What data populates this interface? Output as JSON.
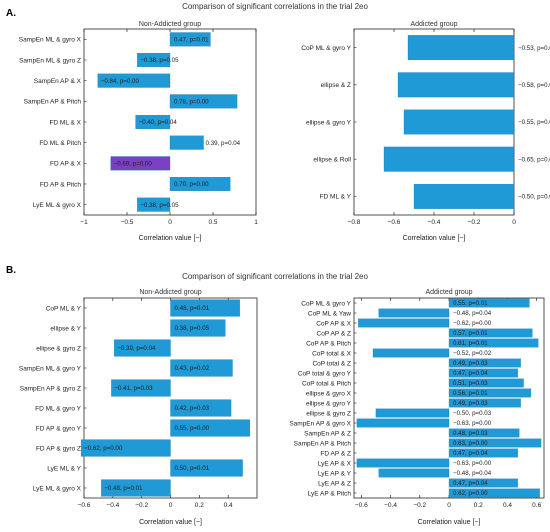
{
  "section_a": {
    "letter": "A.",
    "title": "Comparison of significant correlations in the trial 2eo"
  },
  "section_b": {
    "letter": "B.",
    "title": "Comparison of significant correlations in the trial 2eo"
  },
  "colors": {
    "bar_fill": "#1f9ad6",
    "bar_highlight": "#7b3fc4",
    "frame": "#262626"
  },
  "chart_data": [
    {
      "id": "a-non-addicted",
      "type": "bar",
      "orientation": "horizontal",
      "title": "Non-Addicted group",
      "xlabel": "Correlation value [−]",
      "xlim": [
        -1,
        1
      ],
      "xticks": [
        -1,
        -0.5,
        0,
        0.5,
        1
      ],
      "xtick_labels": [
        "−1",
        "−0.5",
        "0",
        "0.5",
        "1"
      ],
      "categories": [
        "SampEn ML & gyro X",
        "SampEn ML & gyro Z",
        "SampEn AP & X",
        "SampEn AP & Pitch",
        "FD ML & X",
        "FD ML & Pitch",
        "FD AP & X",
        "FD AP & Pitch",
        "LyE ML & gyro X"
      ],
      "values": [
        0.47,
        -0.38,
        -0.84,
        0.78,
        -0.4,
        0.39,
        -0.69,
        0.7,
        -0.38
      ],
      "labels": [
        "0.47, p=0.01",
        "−0.38, p=0.05",
        "−0.84, p=0.00",
        "0.78, p=0.00",
        "−0.40, p=0.04",
        "0.39, p=0.04",
        "−0.69, p=0.00",
        "0.70, p=0.00",
        "−0.38, p=0.05"
      ],
      "highlighted": [
        false,
        false,
        false,
        false,
        false,
        false,
        true,
        false,
        false
      ]
    },
    {
      "id": "a-addicted",
      "type": "bar",
      "orientation": "horizontal",
      "title": "Addicted group",
      "xlabel": "Correlation value [−]",
      "xlim": [
        -0.8,
        0
      ],
      "xticks": [
        -0.8,
        -0.6,
        -0.4,
        -0.2,
        0
      ],
      "xtick_labels": [
        "−0.8",
        "−0.6",
        "−0.4",
        "−0.2",
        "0"
      ],
      "categories": [
        "CoP ML & gyro Y",
        "ellipse & Z",
        "ellipse & gyro Y",
        "ellipse & Roll",
        "FD ML & Y"
      ],
      "values": [
        -0.53,
        -0.58,
        -0.55,
        -0.65,
        -0.5
      ],
      "labels": [
        "−0.53, p=0.02",
        "−0.58, p=0.01",
        "−0.55, p=0.01",
        "−0.65, p=0.00",
        "−0.50, p=0.03"
      ],
      "highlighted": [
        false,
        false,
        false,
        false,
        false
      ]
    },
    {
      "id": "b-non-addicted",
      "type": "bar",
      "orientation": "horizontal",
      "title": "Non-Addicted group",
      "xlabel": "Correlation value [−]",
      "xlim": [
        -0.6,
        0.6
      ],
      "xticks": [
        -0.6,
        -0.4,
        -0.2,
        0,
        0.2,
        0.4
      ],
      "xtick_labels": [
        "−0.6",
        "−0.4",
        "−0.2",
        "0",
        "0.2",
        "0.4"
      ],
      "categories": [
        "CoP ML & Y",
        "ellipse & Y",
        "ellipse & gyro Z",
        "SampEn ML & gyro Y",
        "SampEn AP & gyro Z",
        "FD ML & gyro Y",
        "FD AP & gyro Y",
        "FD AP & gyro Z",
        "LyE ML & Y",
        "LyE ML & gyro X"
      ],
      "values": [
        0.48,
        0.38,
        -0.39,
        0.43,
        -0.41,
        0.42,
        0.55,
        -0.62,
        0.5,
        -0.48
      ],
      "labels": [
        "0.48, p=0.01",
        "0.38, p=0.05",
        "−0.39, p=0.04",
        "0.43, p=0.02",
        "−0.41, p=0.03",
        "0.42, p=0.03",
        "0.55, p=0.00",
        "−0.62, p=0.00",
        "0.50, p=0.01",
        "−0.48, p=0.01"
      ],
      "highlighted": [
        false,
        false,
        false,
        false,
        false,
        false,
        false,
        false,
        false,
        false
      ]
    },
    {
      "id": "b-addicted",
      "type": "bar",
      "orientation": "horizontal",
      "title": "Addicted group",
      "xlabel": "Correlation value [−]",
      "xlim": [
        -0.65,
        0.65
      ],
      "xticks": [
        -0.6,
        -0.4,
        -0.2,
        0,
        0.2,
        0.4,
        0.6
      ],
      "xtick_labels": [
        "−0.6",
        "−0.4",
        "−0.2",
        "0",
        "0.2",
        "0.4",
        "0.6"
      ],
      "categories": [
        "CoP ML & gyro Y",
        "CoP ML & Yaw",
        "CoP AP & X",
        "CoP AP & Z",
        "CoP AP & Pitch",
        "CoP total & X",
        "CoP total & Z",
        "CoP total & gyro Y",
        "CoP total & Pitch",
        "ellipse & gyro X",
        "ellipse & gyro Y",
        "ellipse & gyro Z",
        "SampEn AP & gyro X",
        "SampEn AP & Z",
        "SampEn AP & Pitch",
        "FD AP & Z",
        "LyE AP & X",
        "LyE AP & Y",
        "LyE AP & Z",
        "LyE AP & Pitch"
      ],
      "values": [
        0.55,
        -0.48,
        -0.62,
        0.57,
        0.61,
        -0.52,
        0.49,
        0.47,
        0.51,
        0.56,
        0.49,
        -0.5,
        -0.63,
        0.48,
        0.63,
        0.47,
        -0.63,
        -0.48,
        0.47,
        0.62
      ],
      "labels": [
        "0.55, p=0.01",
        "−0.48, p=0.04",
        "−0.62, p=0.00",
        "0.57, p=0.01",
        "0.61, p=0.01",
        "−0.52, p=0.02",
        "0.49, p=0.03",
        "0.47, p=0.04",
        "0.51, p=0.03",
        "0.56, p=0.01",
        "0.49, p=0.03",
        "−0.50, p=0.03",
        "−0.63, p=0.00",
        "0.48, p=0.03",
        "0.63, p=0.00",
        "0.47, p=0.04",
        "−0.63, p=0.00",
        "−0.48, p=0.04",
        "0.47, p=0.04",
        "0.62, p=0.00"
      ],
      "highlighted": [
        false,
        false,
        false,
        false,
        false,
        false,
        false,
        false,
        false,
        false,
        false,
        false,
        false,
        false,
        false,
        false,
        false,
        false,
        false,
        false
      ]
    }
  ]
}
